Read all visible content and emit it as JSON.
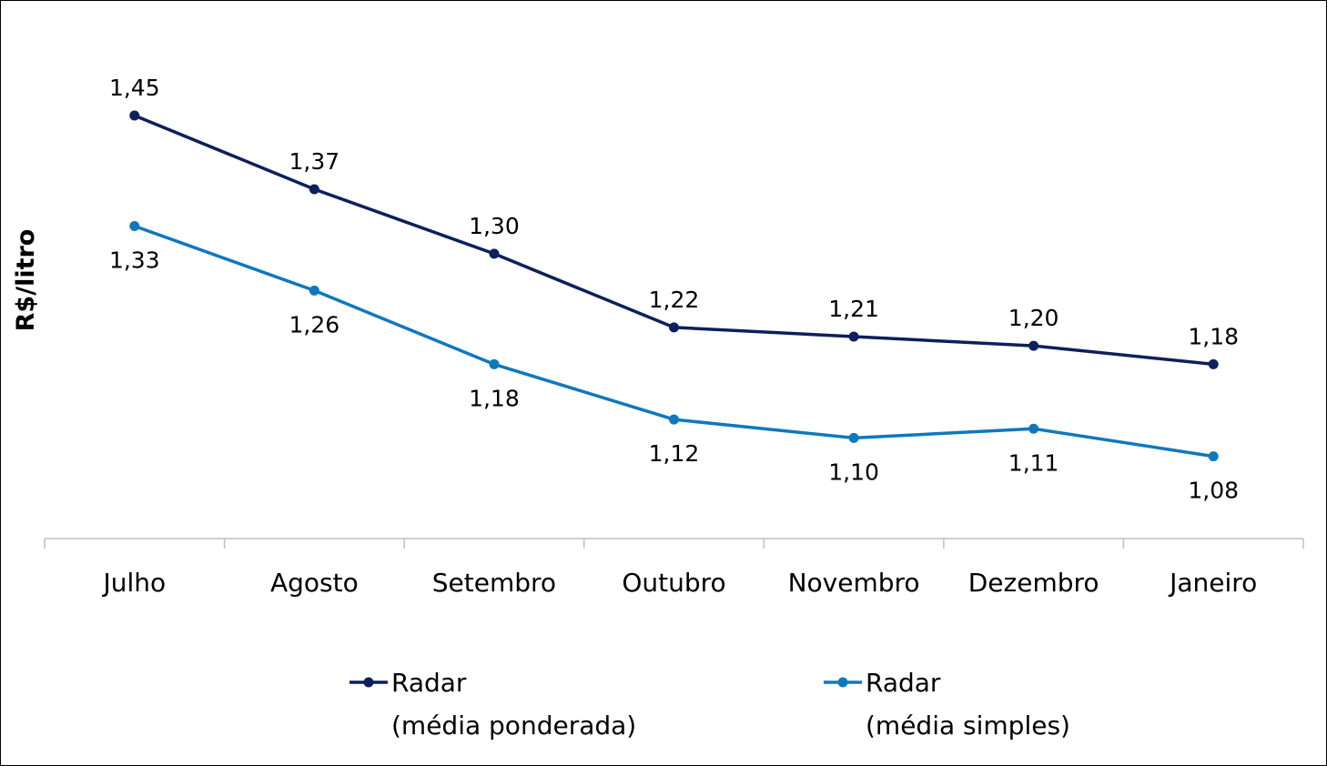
{
  "chart_data": {
    "type": "line",
    "title": "",
    "xlabel": "",
    "ylabel": "R$/litro",
    "categories": [
      "Julho",
      "Agosto",
      "Setembro",
      "Outubro",
      "Novembro",
      "Dezembro",
      "Janeiro"
    ],
    "series": [
      {
        "name_line1": "Radar",
        "name_line2": "(média ponderada)",
        "color": "#0d1f5c",
        "values": [
          1.45,
          1.37,
          1.3,
          1.22,
          1.21,
          1.2,
          1.18
        ],
        "labels": [
          "1,45",
          "1,37",
          "1,30",
          "1,22",
          "1,21",
          "1,20",
          "1,18"
        ],
        "label_position": "above"
      },
      {
        "name_line1": "Radar",
        "name_line2": "(média simples)",
        "color": "#0e78be",
        "values": [
          1.33,
          1.26,
          1.18,
          1.12,
          1.1,
          1.11,
          1.08
        ],
        "labels": [
          "1,33",
          "1,26",
          "1,18",
          "1,12",
          "1,10",
          "1,11",
          "1,08"
        ],
        "label_position": "below"
      }
    ],
    "axis_color": "#bfbfbf",
    "grid": false,
    "legend_position": "bottom"
  }
}
